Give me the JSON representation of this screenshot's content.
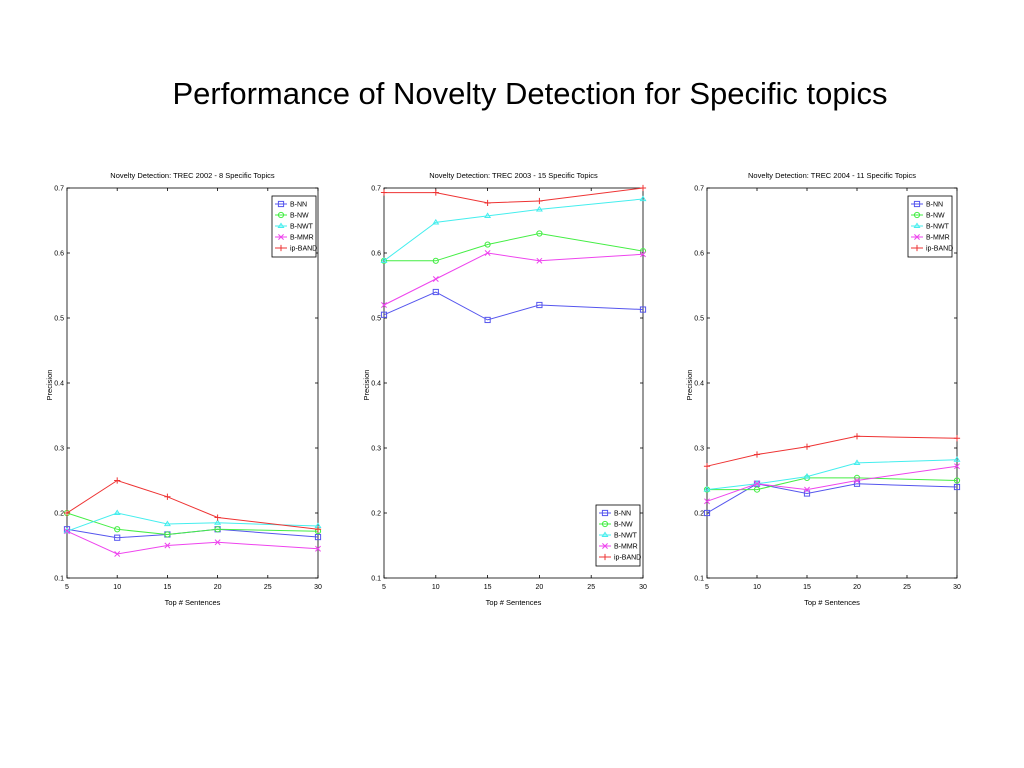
{
  "slide": {
    "title": "Performance of Novelty Detection for Specific topics"
  },
  "colors": {
    "B-NN": "#5555ee",
    "B-NW": "#44ee44",
    "B-NWT": "#44eeee",
    "B-MMR": "#ee44ee",
    "ip-BAND": "#ee3333"
  },
  "chart_data": [
    {
      "type": "line",
      "title": "Novelty Detection: TREC 2002 - 8 Specific Topics",
      "xlabel": "Top # Sentences",
      "ylabel": "Precision",
      "x": [
        5,
        10,
        15,
        20,
        30
      ],
      "xlim": [
        5,
        30
      ],
      "ylim": [
        0.1,
        0.7
      ],
      "xticks": [
        "5",
        "10",
        "15",
        "20",
        "25",
        "30"
      ],
      "yticks": [
        "0.1",
        "0.2",
        "0.3",
        "0.4",
        "0.5",
        "0.6",
        "0.7"
      ],
      "legend_position": "top-right",
      "series": [
        {
          "name": "B-NN",
          "marker": "square",
          "values": [
            0.175,
            0.162,
            0.167,
            0.175,
            0.163
          ]
        },
        {
          "name": "B-NW",
          "marker": "circle",
          "values": [
            0.2,
            0.175,
            0.167,
            0.175,
            0.172
          ]
        },
        {
          "name": "B-NWT",
          "marker": "triangle",
          "values": [
            0.172,
            0.2,
            0.183,
            0.185,
            0.18
          ]
        },
        {
          "name": "B-MMR",
          "marker": "x",
          "values": [
            0.172,
            0.137,
            0.15,
            0.155,
            0.145
          ]
        },
        {
          "name": "ip-BAND",
          "marker": "plus",
          "values": [
            0.2,
            0.25,
            0.225,
            0.193,
            0.175
          ]
        }
      ]
    },
    {
      "type": "line",
      "title": "Novelty Detection: TREC 2003 - 15 Specific Topics",
      "xlabel": "Top # Sentences",
      "ylabel": "Precision",
      "x": [
        5,
        10,
        15,
        20,
        30
      ],
      "xlim": [
        5,
        30
      ],
      "ylim": [
        0.1,
        0.7
      ],
      "xticks": [
        "5",
        "10",
        "15",
        "20",
        "25",
        "30"
      ],
      "yticks": [
        "0.1",
        "0.2",
        "0.3",
        "0.4",
        "0.5",
        "0.6",
        "0.7"
      ],
      "legend_position": "bottom-right",
      "series": [
        {
          "name": "B-NN",
          "marker": "square",
          "values": [
            0.505,
            0.54,
            0.497,
            0.52,
            0.513
          ]
        },
        {
          "name": "B-NW",
          "marker": "circle",
          "values": [
            0.588,
            0.588,
            0.613,
            0.63,
            0.603
          ]
        },
        {
          "name": "B-NWT",
          "marker": "triangle",
          "values": [
            0.588,
            0.647,
            0.657,
            0.667,
            0.683
          ]
        },
        {
          "name": "B-MMR",
          "marker": "x",
          "values": [
            0.52,
            0.56,
            0.6,
            0.588,
            0.598
          ]
        },
        {
          "name": "ip-BAND",
          "marker": "plus",
          "values": [
            0.693,
            0.693,
            0.677,
            0.68,
            0.7
          ]
        }
      ]
    },
    {
      "type": "line",
      "title": "Novelty Detection: TREC 2004 - 11 Specific Topics",
      "xlabel": "Top # Sentences",
      "ylabel": "Precision",
      "x": [
        5,
        10,
        15,
        20,
        30
      ],
      "xlim": [
        5,
        30
      ],
      "ylim": [
        0.1,
        0.7
      ],
      "xticks": [
        "5",
        "10",
        "15",
        "20",
        "25",
        "30"
      ],
      "yticks": [
        "0.1",
        "0.2",
        "0.3",
        "0.4",
        "0.5",
        "0.6",
        "0.7"
      ],
      "legend_position": "top-right",
      "series": [
        {
          "name": "B-NN",
          "marker": "square",
          "values": [
            0.2,
            0.245,
            0.23,
            0.245,
            0.24
          ]
        },
        {
          "name": "B-NW",
          "marker": "circle",
          "values": [
            0.236,
            0.236,
            0.254,
            0.254,
            0.25
          ]
        },
        {
          "name": "B-NWT",
          "marker": "triangle",
          "values": [
            0.236,
            0.245,
            0.256,
            0.277,
            0.282
          ]
        },
        {
          "name": "B-MMR",
          "marker": "x",
          "values": [
            0.218,
            0.245,
            0.236,
            0.25,
            0.272
          ]
        },
        {
          "name": "ip-BAND",
          "marker": "plus",
          "values": [
            0.272,
            0.29,
            0.302,
            0.318,
            0.315
          ]
        }
      ]
    }
  ]
}
